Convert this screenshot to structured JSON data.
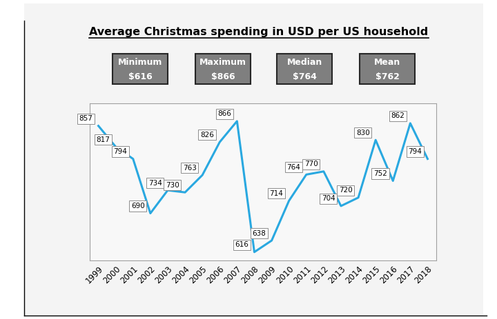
{
  "chart_data": {
    "type": "line",
    "title": "Average Christmas spending in USD per US household",
    "categories": [
      "1999",
      "2000",
      "2001",
      "2002",
      "2003",
      "2004",
      "2005",
      "2006",
      "2007",
      "2008",
      "2009",
      "2010",
      "2011",
      "2012",
      "2013",
      "2014",
      "2015",
      "2016",
      "2017",
      "2018"
    ],
    "values": [
      857,
      817,
      794,
      690,
      734,
      730,
      763,
      826,
      866,
      616,
      638,
      714,
      764,
      770,
      704,
      720,
      830,
      752,
      862,
      794
    ],
    "color": "#29a8e0",
    "ylim": [
      600,
      900
    ],
    "yticks": [],
    "tick_labels": "x",
    "data_labels": true,
    "grid": false,
    "annotations": [
      {
        "label": "Minimum",
        "text": "$616"
      },
      {
        "label": "Maximum",
        "text": "$866"
      },
      {
        "label": "Median",
        "text": "$764"
      },
      {
        "label": "Mean",
        "text": "$762"
      }
    ]
  }
}
